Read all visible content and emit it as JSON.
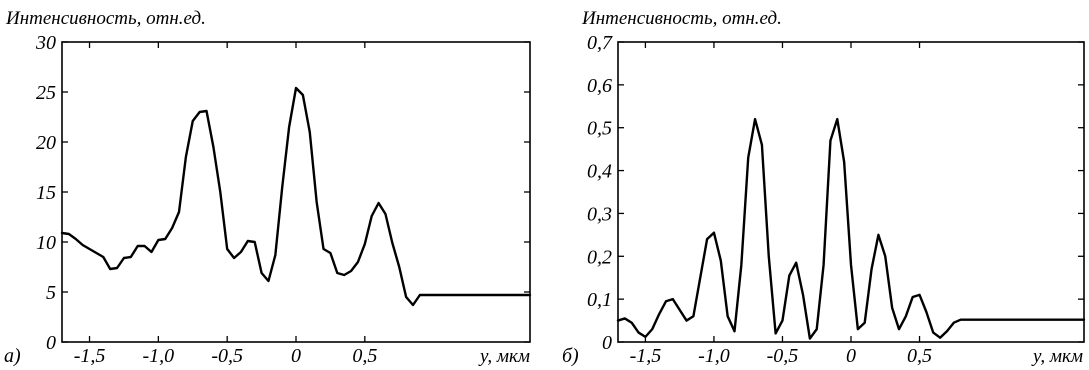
{
  "chart_data": [
    {
      "type": "line",
      "panel_label": "а)",
      "ylabel": "Интенсивность, отн.ед.",
      "xlabel": "y, мкм",
      "xlim": [
        -1.7,
        1.7
      ],
      "ylim": [
        0,
        30
      ],
      "x_ticks": [
        -1.5,
        -1.0,
        -0.5,
        0,
        0.5
      ],
      "x_tick_labels": [
        "-1,5",
        "-1,0",
        "-0,5",
        "0",
        "0,5"
      ],
      "y_ticks": [
        0,
        5,
        10,
        15,
        20,
        25,
        30
      ],
      "y_tick_labels": [
        "0",
        "5",
        "10",
        "15",
        "20",
        "25",
        "30"
      ],
      "grid": false,
      "series": [
        {
          "x": [
            -1.7,
            -1.65,
            -1.6,
            -1.55,
            -1.5,
            -1.45,
            -1.4,
            -1.35,
            -1.3,
            -1.25,
            -1.2,
            -1.15,
            -1.1,
            -1.05,
            -1.0,
            -0.95,
            -0.9,
            -0.85,
            -0.8,
            -0.75,
            -0.7,
            -0.65,
            -0.6,
            -0.55,
            -0.5,
            -0.45,
            -0.4,
            -0.35,
            -0.3,
            -0.25,
            -0.2,
            -0.15,
            -0.1,
            -0.05,
            0.0,
            0.05,
            0.1,
            0.15,
            0.2,
            0.25,
            0.3,
            0.35,
            0.4,
            0.45,
            0.5,
            0.55,
            0.6,
            0.65,
            0.7,
            0.75,
            0.8,
            0.85,
            0.9,
            0.95,
            1.0,
            1.05,
            1.1,
            1.15,
            1.2,
            1.25,
            1.3,
            1.35,
            1.4,
            1.45,
            1.5,
            1.55,
            1.6,
            1.65,
            1.7
          ],
          "values": [
            10.9,
            10.8,
            10.3,
            9.7,
            9.3,
            8.9,
            8.5,
            7.3,
            7.4,
            8.4,
            8.5,
            9.6,
            9.6,
            9.0,
            10.2,
            10.3,
            11.4,
            13.0,
            18.5,
            22.1,
            23.0,
            23.1,
            19.5,
            15.0,
            9.3,
            8.4,
            9.0,
            10.1,
            10.0,
            6.9,
            6.1,
            8.7,
            15.5,
            21.5,
            25.4,
            24.7,
            21.0,
            14.0,
            9.3,
            8.9,
            6.9,
            6.7,
            7.1,
            8.0,
            9.8,
            12.6,
            13.9,
            12.8,
            9.9,
            7.5,
            4.5,
            3.7,
            4.7,
            4.7,
            4.7,
            4.7,
            4.7,
            4.7,
            4.7,
            4.7,
            4.7,
            4.7,
            4.7,
            4.7,
            4.7,
            4.7,
            4.7,
            4.7,
            4.7
          ]
        }
      ]
    },
    {
      "type": "line",
      "panel_label": "б)",
      "ylabel": "Интенсивность, отн.ед.",
      "xlabel": "y, мкм",
      "xlim": [
        -1.7,
        1.7
      ],
      "ylim": [
        0,
        0.7
      ],
      "x_ticks": [
        -1.5,
        -1.0,
        -0.5,
        0,
        0.5
      ],
      "x_tick_labels": [
        "-1,5",
        "-1,0",
        "-0,5",
        "0",
        "0,5"
      ],
      "y_ticks": [
        0,
        0.1,
        0.2,
        0.3,
        0.4,
        0.5,
        0.6,
        0.7
      ],
      "y_tick_labels": [
        "0",
        "0,1",
        "0,2",
        "0,3",
        "0,4",
        "0,5",
        "0,6",
        "0,7"
      ],
      "grid": false,
      "series": [
        {
          "x": [
            -1.7,
            -1.65,
            -1.6,
            -1.55,
            -1.5,
            -1.45,
            -1.4,
            -1.35,
            -1.3,
            -1.25,
            -1.2,
            -1.15,
            -1.1,
            -1.05,
            -1.0,
            -0.95,
            -0.9,
            -0.85,
            -0.8,
            -0.75,
            -0.7,
            -0.65,
            -0.6,
            -0.55,
            -0.5,
            -0.45,
            -0.4,
            -0.35,
            -0.3,
            -0.25,
            -0.2,
            -0.15,
            -0.1,
            -0.05,
            0.0,
            0.05,
            0.1,
            0.15,
            0.2,
            0.25,
            0.3,
            0.35,
            0.4,
            0.45,
            0.5,
            0.55,
            0.6,
            0.65,
            0.7,
            0.75,
            0.8,
            0.85,
            0.9,
            0.95,
            1.0,
            1.05,
            1.1,
            1.15,
            1.2,
            1.25,
            1.3,
            1.35,
            1.4,
            1.45,
            1.5,
            1.55,
            1.6,
            1.65,
            1.7
          ],
          "values": [
            0.05,
            0.055,
            0.045,
            0.022,
            0.012,
            0.03,
            0.065,
            0.095,
            0.1,
            0.075,
            0.05,
            0.06,
            0.15,
            0.24,
            0.255,
            0.19,
            0.06,
            0.025,
            0.18,
            0.43,
            0.52,
            0.46,
            0.2,
            0.02,
            0.05,
            0.155,
            0.185,
            0.11,
            0.008,
            0.03,
            0.18,
            0.47,
            0.52,
            0.42,
            0.18,
            0.03,
            0.045,
            0.17,
            0.25,
            0.2,
            0.08,
            0.03,
            0.06,
            0.105,
            0.11,
            0.07,
            0.022,
            0.01,
            0.025,
            0.045,
            0.052,
            0.052,
            0.052,
            0.052,
            0.052,
            0.052,
            0.052,
            0.052,
            0.052,
            0.052,
            0.052,
            0.052,
            0.052,
            0.052,
            0.052,
            0.052,
            0.052,
            0.052,
            0.052
          ]
        }
      ]
    }
  ]
}
